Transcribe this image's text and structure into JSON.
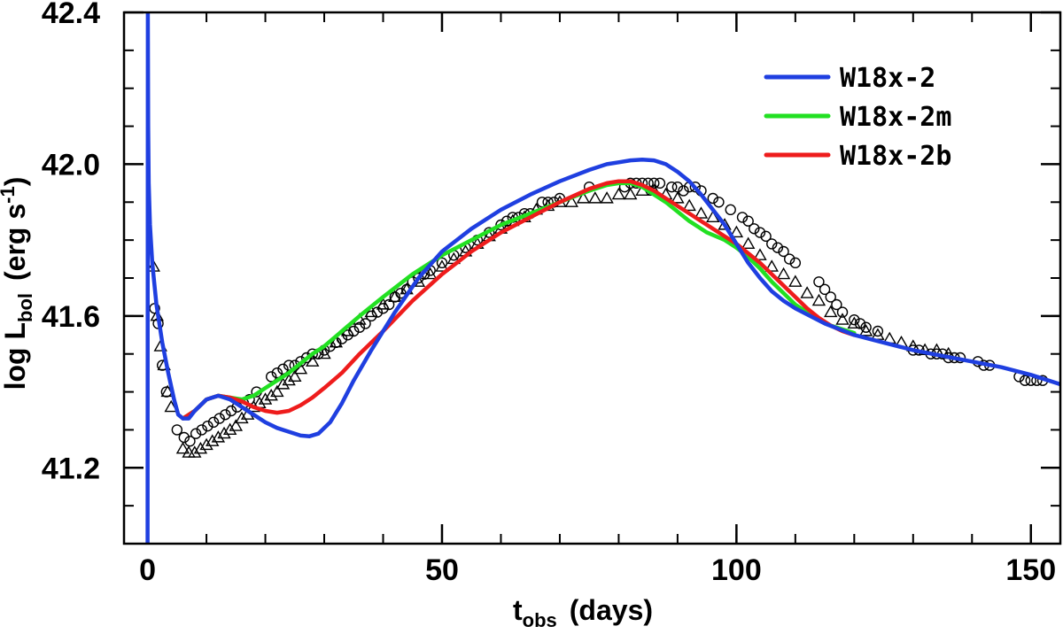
{
  "chart_data": {
    "type": "line",
    "title": "",
    "xlabel": {
      "main": "t",
      "sub": "obs",
      "unit": "(days)"
    },
    "ylabel": {
      "pre": "log L",
      "sub": "bol",
      "unit": "(erg s",
      "sup": "-1",
      "close": ")"
    },
    "xlim": [
      -4,
      155
    ],
    "ylim": [
      41.0,
      42.4
    ],
    "xticks": [
      0,
      50,
      100,
      150
    ],
    "yticks": [
      41.2,
      41.6,
      42.0,
      42.4
    ],
    "xtick_labels": [
      "0",
      "50",
      "100",
      "150"
    ],
    "ytick_labels": [
      "41.2",
      "41.6",
      "42.0",
      "42.4"
    ],
    "x_minor_step": 10,
    "y_minor_step": 0.1,
    "legend": {
      "position": "top-right",
      "entries": [
        "W18x-2",
        "W18x-2m",
        "W18x-2b"
      ]
    },
    "series": [
      {
        "name": "W18x-2",
        "color": "#1f3fe0",
        "x": [
          0.0,
          0.05,
          0.1,
          0.2,
          0.4,
          0.8,
          1.5,
          2.5,
          3.5,
          4.5,
          5.2,
          6.0,
          7.0,
          8.0,
          10.0,
          12.0,
          14.0,
          16.0,
          18.0,
          20.0,
          22.0,
          24.0,
          26.0,
          27.5,
          29.0,
          31.0,
          33.0,
          35.0,
          38.0,
          42.0,
          46.0,
          50.0,
          55.0,
          60.0,
          65.0,
          70.0,
          75.0,
          78.0,
          80.0,
          82.0,
          84.0,
          86.0,
          88.0,
          90.0,
          92.0,
          94.0,
          96.0,
          98.0,
          100.0,
          102.0,
          104.0,
          106.0,
          108.0,
          110.0,
          115.0,
          120.0,
          125.0,
          130.0,
          135.0,
          140.0,
          145.0,
          150.0,
          155.0
        ],
        "y": [
          41.0,
          42.4,
          42.1,
          41.95,
          41.84,
          41.74,
          41.63,
          41.53,
          41.45,
          41.38,
          41.34,
          41.33,
          41.33,
          41.35,
          41.38,
          41.39,
          41.38,
          41.36,
          41.34,
          41.32,
          41.305,
          41.295,
          41.285,
          41.283,
          41.29,
          41.32,
          41.37,
          41.43,
          41.51,
          41.61,
          41.7,
          41.77,
          41.83,
          41.88,
          41.92,
          41.955,
          41.985,
          42.0,
          42.005,
          42.01,
          42.012,
          42.01,
          42.0,
          41.98,
          41.955,
          41.92,
          41.88,
          41.84,
          41.79,
          41.74,
          41.7,
          41.665,
          41.64,
          41.62,
          41.58,
          41.55,
          41.53,
          41.51,
          41.495,
          41.48,
          41.465,
          41.445,
          41.42
        ]
      },
      {
        "name": "W18x-2m",
        "color": "#22e022",
        "x": [
          6.0,
          8.0,
          10.0,
          12.0,
          14.0,
          16.0,
          18.0,
          20.0,
          22.0,
          24.0,
          26.0,
          28.0,
          30.0,
          33.0,
          36.0,
          40.0,
          45.0,
          50.0,
          55.0,
          60.0,
          65.0,
          70.0,
          75.0,
          78.0,
          80.0,
          82.0,
          84.0,
          86.0,
          88.0,
          90.0,
          92.0,
          95.0,
          98.0,
          100.0,
          102.0,
          104.0,
          106.0,
          108.0,
          110.0,
          113.0,
          116.0,
          120.0
        ],
        "y": [
          41.33,
          41.35,
          41.38,
          41.39,
          41.385,
          41.38,
          41.39,
          41.41,
          41.43,
          41.45,
          41.475,
          41.5,
          41.52,
          41.56,
          41.6,
          41.65,
          41.71,
          41.76,
          41.8,
          41.84,
          41.87,
          41.9,
          41.93,
          41.945,
          41.95,
          41.95,
          41.94,
          41.92,
          41.9,
          41.875,
          41.85,
          41.82,
          41.8,
          41.78,
          41.755,
          41.725,
          41.69,
          41.66,
          41.63,
          41.6,
          41.575,
          41.555
        ]
      },
      {
        "name": "W18x-2b",
        "color": "#ee1c1c",
        "x": [
          6.0,
          8.0,
          10.0,
          12.0,
          14.0,
          16.0,
          18.0,
          20.0,
          22.0,
          24.0,
          26.0,
          28.0,
          30.0,
          33.0,
          36.0,
          40.0,
          45.0,
          50.0,
          55.0,
          60.0,
          65.0,
          70.0,
          75.0,
          78.0,
          80.0,
          82.0,
          84.0,
          86.0,
          88.0,
          90.0,
          92.0,
          95.0,
          98.0,
          100.0,
          102.0,
          104.0,
          106.0,
          108.0,
          110.0,
          112.0,
          114.0,
          116.0,
          118.0,
          120.0
        ],
        "y": [
          41.33,
          41.35,
          41.38,
          41.39,
          41.385,
          41.375,
          41.36,
          41.35,
          41.345,
          41.35,
          41.365,
          41.385,
          41.41,
          41.45,
          41.5,
          41.56,
          41.64,
          41.71,
          41.77,
          41.82,
          41.86,
          41.9,
          41.935,
          41.95,
          41.955,
          41.955,
          41.945,
          41.93,
          41.91,
          41.89,
          41.87,
          41.84,
          41.81,
          41.79,
          41.765,
          41.74,
          41.71,
          41.68,
          41.65,
          41.62,
          41.595,
          41.575,
          41.56,
          41.55
        ]
      }
    ],
    "observations": [
      {
        "name": "circles",
        "marker": "circle",
        "x": [
          1.2,
          1.8,
          2.5,
          3.2,
          5.0,
          6.2,
          7.2,
          8.2,
          9.2,
          10.2,
          11.2,
          12.2,
          13.2,
          14.2,
          15.2,
          16.3,
          17.3,
          18.5,
          21.0,
          22.0,
          23.0,
          24.0,
          25.0,
          26.0,
          27.0,
          28.0,
          29.0,
          30.0,
          31.0,
          32.0,
          33.0,
          34.0,
          35.0,
          36.0,
          37.0,
          38.0,
          39.0,
          40.0,
          41.0,
          42.0,
          43.0,
          44.0,
          45.0,
          46.0,
          47.0,
          48.0,
          50.0,
          52.0,
          54.0,
          56.0,
          58.0,
          60.0,
          61.0,
          62.0,
          63.0,
          64.0,
          65.0,
          67.0,
          68.0,
          69.0,
          70.0,
          75.0,
          81.0,
          82.0,
          83.0,
          84.0,
          85.0,
          86.0,
          87.0,
          89.0,
          90.0,
          91.0,
          92.0,
          93.0,
          94.0,
          96.0,
          97.0,
          99.0,
          101.0,
          102.0,
          103.0,
          104.0,
          105.0,
          106.0,
          107.0,
          108.0,
          109.0,
          110.0,
          114.0,
          115.0,
          116.0,
          117.0,
          118.0,
          120.0,
          121.0,
          122.0,
          124.0,
          130.0,
          131.0,
          133.0,
          134.0,
          135.0,
          136.0,
          137.0,
          138.0,
          141.0,
          142.0,
          143.0,
          148.0,
          149.0,
          150.0,
          151.0,
          152.0
        ],
        "y": [
          41.62,
          41.58,
          41.47,
          41.4,
          41.3,
          41.28,
          41.27,
          41.29,
          41.3,
          41.31,
          41.32,
          41.33,
          41.34,
          41.35,
          41.36,
          41.37,
          41.38,
          41.4,
          41.44,
          41.45,
          41.46,
          41.47,
          41.47,
          41.48,
          41.49,
          41.5,
          41.5,
          41.51,
          41.52,
          41.53,
          41.54,
          41.55,
          41.56,
          41.57,
          41.58,
          41.6,
          41.61,
          41.62,
          41.63,
          41.65,
          41.66,
          41.67,
          41.69,
          41.7,
          41.71,
          41.72,
          41.74,
          41.76,
          41.78,
          41.8,
          41.82,
          41.84,
          41.85,
          41.86,
          41.86,
          41.87,
          41.87,
          41.9,
          41.9,
          41.9,
          41.91,
          41.94,
          41.94,
          41.95,
          41.95,
          41.95,
          41.95,
          41.95,
          41.95,
          41.94,
          41.94,
          41.93,
          41.94,
          41.94,
          41.93,
          41.91,
          41.9,
          41.88,
          41.86,
          41.85,
          41.83,
          41.82,
          41.81,
          41.79,
          41.78,
          41.77,
          41.75,
          41.74,
          41.69,
          41.67,
          41.65,
          41.63,
          41.61,
          41.59,
          41.58,
          41.57,
          41.56,
          41.51,
          41.51,
          41.5,
          41.5,
          41.5,
          41.49,
          41.49,
          41.49,
          41.48,
          41.47,
          41.47,
          41.44,
          41.43,
          41.43,
          41.43,
          41.43
        ]
      },
      {
        "name": "triangles",
        "marker": "triangle",
        "x": [
          1.0,
          1.6,
          2.2,
          2.8,
          3.4,
          4.0,
          6.0,
          7.0,
          8.0,
          9.0,
          10.0,
          11.0,
          12.0,
          13.0,
          14.0,
          15.0,
          16.0,
          17.0,
          18.0,
          19.0,
          20.0,
          21.0,
          22.0,
          23.0,
          24.0,
          25.0,
          26.0,
          28.0,
          30.0,
          32.0,
          34.0,
          36.0,
          38.0,
          40.0,
          42.0,
          44.0,
          46.0,
          48.0,
          50.0,
          52.0,
          54.0,
          56.0,
          58.0,
          60.0,
          62.0,
          64.0,
          66.0,
          68.0,
          70.0,
          72.0,
          74.0,
          76.0,
          78.0,
          80.0,
          82.0,
          84.0,
          86.0,
          88.0,
          90.0,
          92.0,
          94.0,
          96.0,
          98.0,
          100.0,
          102.0,
          104.0,
          106.0,
          108.0,
          110.0,
          112.0,
          114.0,
          116.0,
          118.0,
          120.0,
          122.0,
          124.0,
          126.0,
          128.0,
          130.0,
          132.0,
          134.0,
          136.0
        ],
        "y": [
          41.73,
          41.6,
          41.52,
          41.47,
          41.4,
          41.36,
          41.25,
          41.24,
          41.24,
          41.25,
          41.26,
          41.27,
          41.28,
          41.29,
          41.3,
          41.31,
          41.33,
          41.34,
          41.36,
          41.37,
          41.38,
          41.39,
          41.4,
          41.42,
          41.43,
          41.44,
          41.46,
          41.48,
          41.5,
          41.53,
          41.56,
          41.59,
          41.61,
          41.63,
          41.65,
          41.67,
          41.69,
          41.71,
          41.73,
          41.75,
          41.77,
          41.79,
          41.81,
          41.83,
          41.85,
          41.86,
          41.88,
          41.89,
          41.9,
          41.9,
          41.91,
          41.91,
          41.91,
          41.92,
          41.92,
          41.93,
          41.93,
          41.92,
          41.91,
          41.89,
          41.87,
          41.86,
          41.84,
          41.82,
          41.79,
          41.76,
          41.73,
          41.71,
          41.69,
          41.66,
          41.64,
          41.61,
          41.59,
          41.58,
          41.56,
          41.55,
          41.54,
          41.53,
          41.52,
          41.51,
          41.51,
          41.5
        ]
      }
    ]
  }
}
